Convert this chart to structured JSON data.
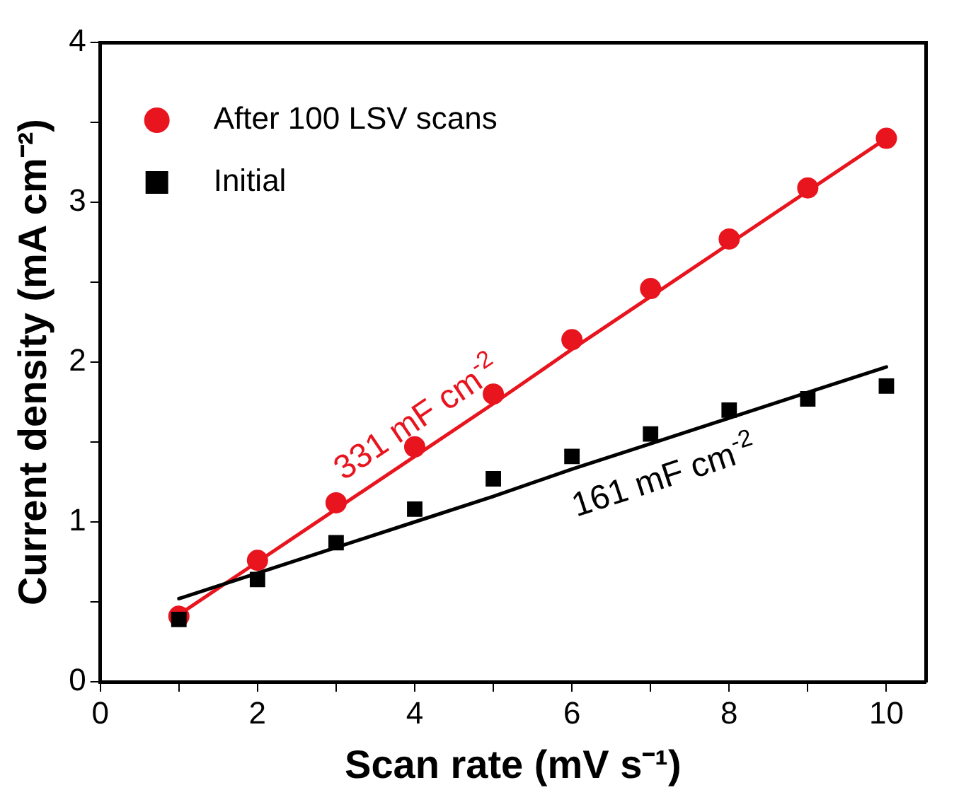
{
  "chart_data": {
    "type": "scatter",
    "xlabel": "Scan rate (mV s⁻¹)",
    "ylabel": "Current density (mA cm⁻²)",
    "xlim": [
      0,
      10.5
    ],
    "ylim": [
      0,
      4
    ],
    "xticks": [
      0,
      {
        "value": 1,
        "label": null
      },
      2,
      {
        "value": 3,
        "label": null
      },
      4,
      {
        "value": 5,
        "label": null
      },
      6,
      {
        "value": 7,
        "label": null
      },
      8,
      {
        "value": 9,
        "label": null
      },
      10
    ],
    "yticks": [
      0,
      {
        "value": 0.5,
        "label": null
      },
      1,
      {
        "value": 1.5,
        "label": null
      },
      2,
      {
        "value": 2.5,
        "label": null
      },
      3,
      {
        "value": 3.5,
        "label": null
      },
      4
    ],
    "x": [
      1,
      2,
      3,
      4,
      5,
      6,
      7,
      8,
      9,
      10
    ],
    "series": [
      {
        "type": "line",
        "color": "#e8141e",
        "values": [
          0.42,
          0.75,
          1.08,
          1.41,
          1.74,
          2.08,
          2.41,
          2.74,
          3.07,
          3.4
        ],
        "marker": "none"
      },
      {
        "type": "line",
        "color": "#000000",
        "values": [
          0.52,
          0.68,
          0.84,
          1.0,
          1.16,
          1.33,
          1.49,
          1.65,
          1.81,
          1.97
        ],
        "marker": "none"
      },
      {
        "name": "After 100 LSV scans",
        "color": "#e8141e",
        "marker": "circle",
        "values": [
          0.41,
          0.76,
          1.12,
          1.47,
          1.8,
          2.14,
          2.46,
          2.77,
          3.09,
          3.4
        ]
      },
      {
        "name": "Initial",
        "color": "#000000",
        "marker": "square",
        "values": [
          0.39,
          0.64,
          0.87,
          1.08,
          1.27,
          1.41,
          1.55,
          1.7,
          1.77,
          1.85
        ]
      }
    ],
    "annotations": [
      "331 mF cm$^{-2}$",
      "161 mF cm$^{-2}$"
    ],
    "legend": "top left",
    "grid": false
  }
}
